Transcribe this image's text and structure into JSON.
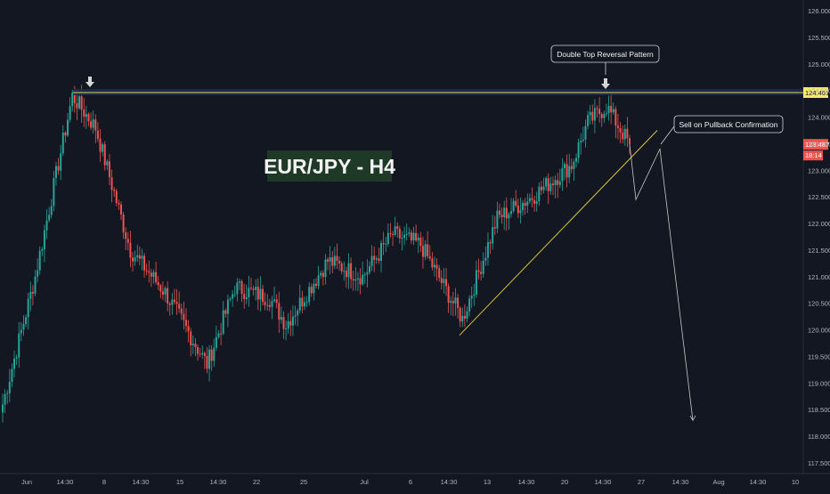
{
  "chart_data": {
    "type": "candlestick",
    "title": "EUR/JPY -  H4",
    "symbol": "EUR/JPY",
    "timeframe": "H4",
    "ylim": [
      117.3,
      126.2
    ],
    "y_ticks": [
      "126.000",
      "125.500",
      "125.000",
      "124.500",
      "124.000",
      "123.500",
      "123.000",
      "122.500",
      "122.000",
      "121.500",
      "121.000",
      "120.500",
      "120.000",
      "119.500",
      "119.000",
      "118.500",
      "118.000",
      "117.500"
    ],
    "x_ticks": [
      "Jun",
      "14:30",
      "8",
      "14:30",
      "15",
      "14:30",
      "22",
      "25",
      "Jul",
      "6",
      "14:30",
      "13",
      "14:30",
      "20",
      "14:30",
      "27",
      "14:30",
      "Aug",
      "14:30",
      "10"
    ],
    "resistance_level": 124.461,
    "resistance_label": "124.461",
    "last_price": 123.487,
    "last_price_label": "123.487",
    "countdown_label": "18:14",
    "key_points": [
      {
        "label": "start",
        "value": 118.6
      },
      {
        "label": "first top",
        "value": 124.4
      },
      {
        "label": "post-top low",
        "value": 119.35
      },
      {
        "label": "pullback low",
        "value": 120.2
      },
      {
        "label": "second top",
        "value": 124.2
      },
      {
        "label": "last",
        "value": 123.49
      }
    ],
    "trendline": {
      "from": 119.9,
      "to": 123.75
    },
    "projection": [
      123.49,
      122.45,
      123.4,
      118.3
    ],
    "annotations": {
      "top_label": "Double Top Reversal Pattern",
      "sell_label": "Sell on Pullback Confirmation"
    },
    "colors": {
      "background": "#131722",
      "up": "#26a69a",
      "down": "#ef5350",
      "resistance": "#e6d45a",
      "trendline": "#d8c43a",
      "projection": "#c8c8c8",
      "label_bg": "#1e3a26",
      "price_tag": "#ef5350"
    }
  }
}
